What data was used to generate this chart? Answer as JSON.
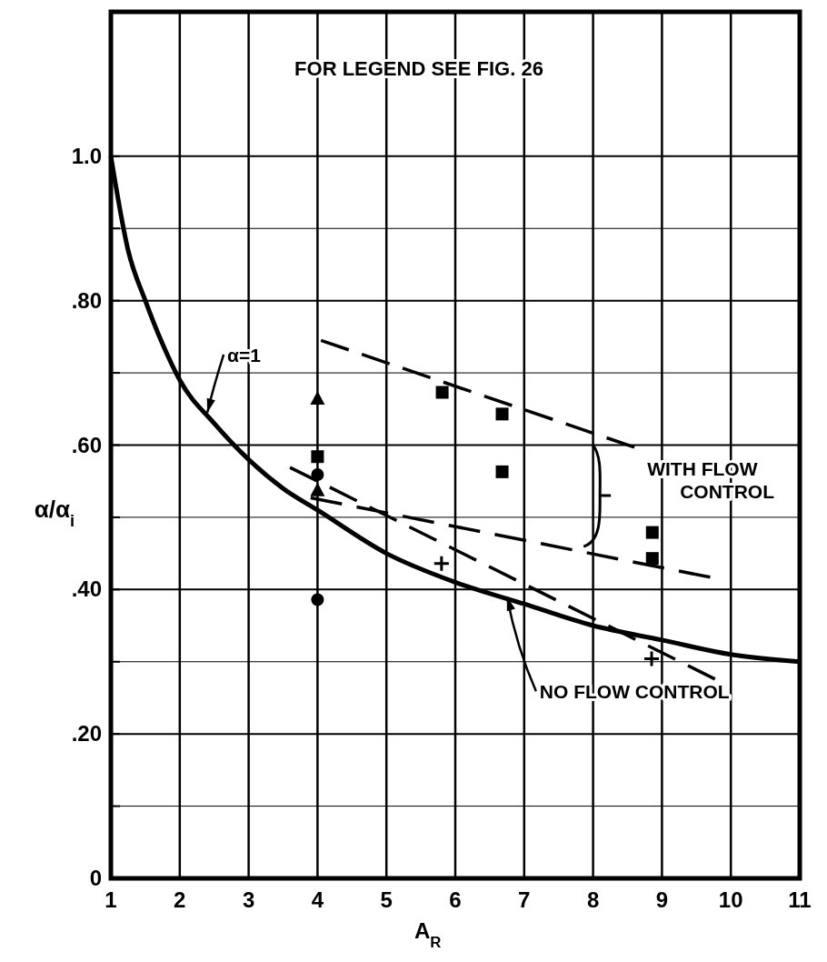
{
  "chart_data": {
    "type": "line",
    "xlabel": "A$_{R}$",
    "ylabel": "α/α$_{i}$",
    "xlim": [
      1,
      11
    ],
    "xticks": [
      1,
      2,
      3,
      4,
      5,
      6,
      7,
      8,
      9,
      10,
      11
    ],
    "ylim": [
      0,
      1.2
    ],
    "yticks": [
      0,
      {
        "value": 0.1,
        "label": null
      },
      {
        "value": 0.2,
        "label": ".20"
      },
      {
        "value": 0.3,
        "label": null
      },
      {
        "value": 0.4,
        "label": ".40"
      },
      {
        "value": 0.5,
        "label": null
      },
      {
        "value": 0.6,
        "label": ".60"
      },
      {
        "value": 0.7,
        "label": null
      },
      {
        "value": 0.8,
        "label": ".80"
      },
      {
        "value": 0.9,
        "label": null
      },
      {
        "value": 1,
        "label": "1.0"
      }
    ],
    "grid": true,
    "series": [
      {
        "color": "#000000",
        "line_style": "solid",
        "x": [
          1,
          1.25,
          1.5,
          1.75,
          2,
          2.5,
          3,
          3.5,
          4,
          5,
          6,
          7,
          8,
          9,
          10,
          11
        ],
        "values": [
          1.0,
          0.87,
          0.8,
          0.74,
          0.69,
          0.63,
          0.58,
          0.54,
          0.51,
          0.45,
          0.41,
          0.38,
          0.35,
          0.33,
          0.31,
          0.3
        ]
      },
      {
        "color": "#000000",
        "line_style": "dashed",
        "x": [
          4.05,
          8.6
        ],
        "values": [
          0.745,
          0.597
        ]
      },
      {
        "color": "#000000",
        "line_style": "dashed",
        "x": [
          3.9,
          9.7
        ],
        "values": [
          0.527,
          0.417
        ]
      },
      {
        "color": "#000000",
        "line_style": "dashed",
        "x": [
          3.6,
          9.77
        ],
        "values": [
          0.569,
          0.276
        ]
      },
      {
        "type": "scatter",
        "color": "#000000",
        "marker": "square",
        "x": [
          4,
          5.81,
          6.68,
          6.68,
          8.86,
          8.86
        ],
        "values": [
          0.584,
          0.673,
          0.643,
          0.563,
          0.479,
          0.443
        ]
      },
      {
        "type": "scatter",
        "color": "#000000",
        "marker": "circle",
        "x": [
          4,
          4
        ],
        "values": [
          0.559,
          0.386
        ]
      },
      {
        "type": "scatter",
        "color": "#000000",
        "marker": "triangle",
        "x": [
          4,
          4
        ],
        "values": [
          0.665,
          0.538
        ]
      },
      {
        "type": "scatter",
        "color": "#000000",
        "marker": "cross",
        "x": [
          5.8,
          8.85
        ],
        "values": [
          0.436,
          0.304
        ]
      }
    ],
    "annotations": [
      "FOR LEGEND SEE FIG. 26",
      {
        "text": "α=1",
        "x": 2.4,
        "y": 0.645
      },
      "WITH FLOW\nCONTROL",
      {
        "text": "NO FLOW CONTROL",
        "x": 6.75,
        "y": 0.39
      }
    ]
  }
}
